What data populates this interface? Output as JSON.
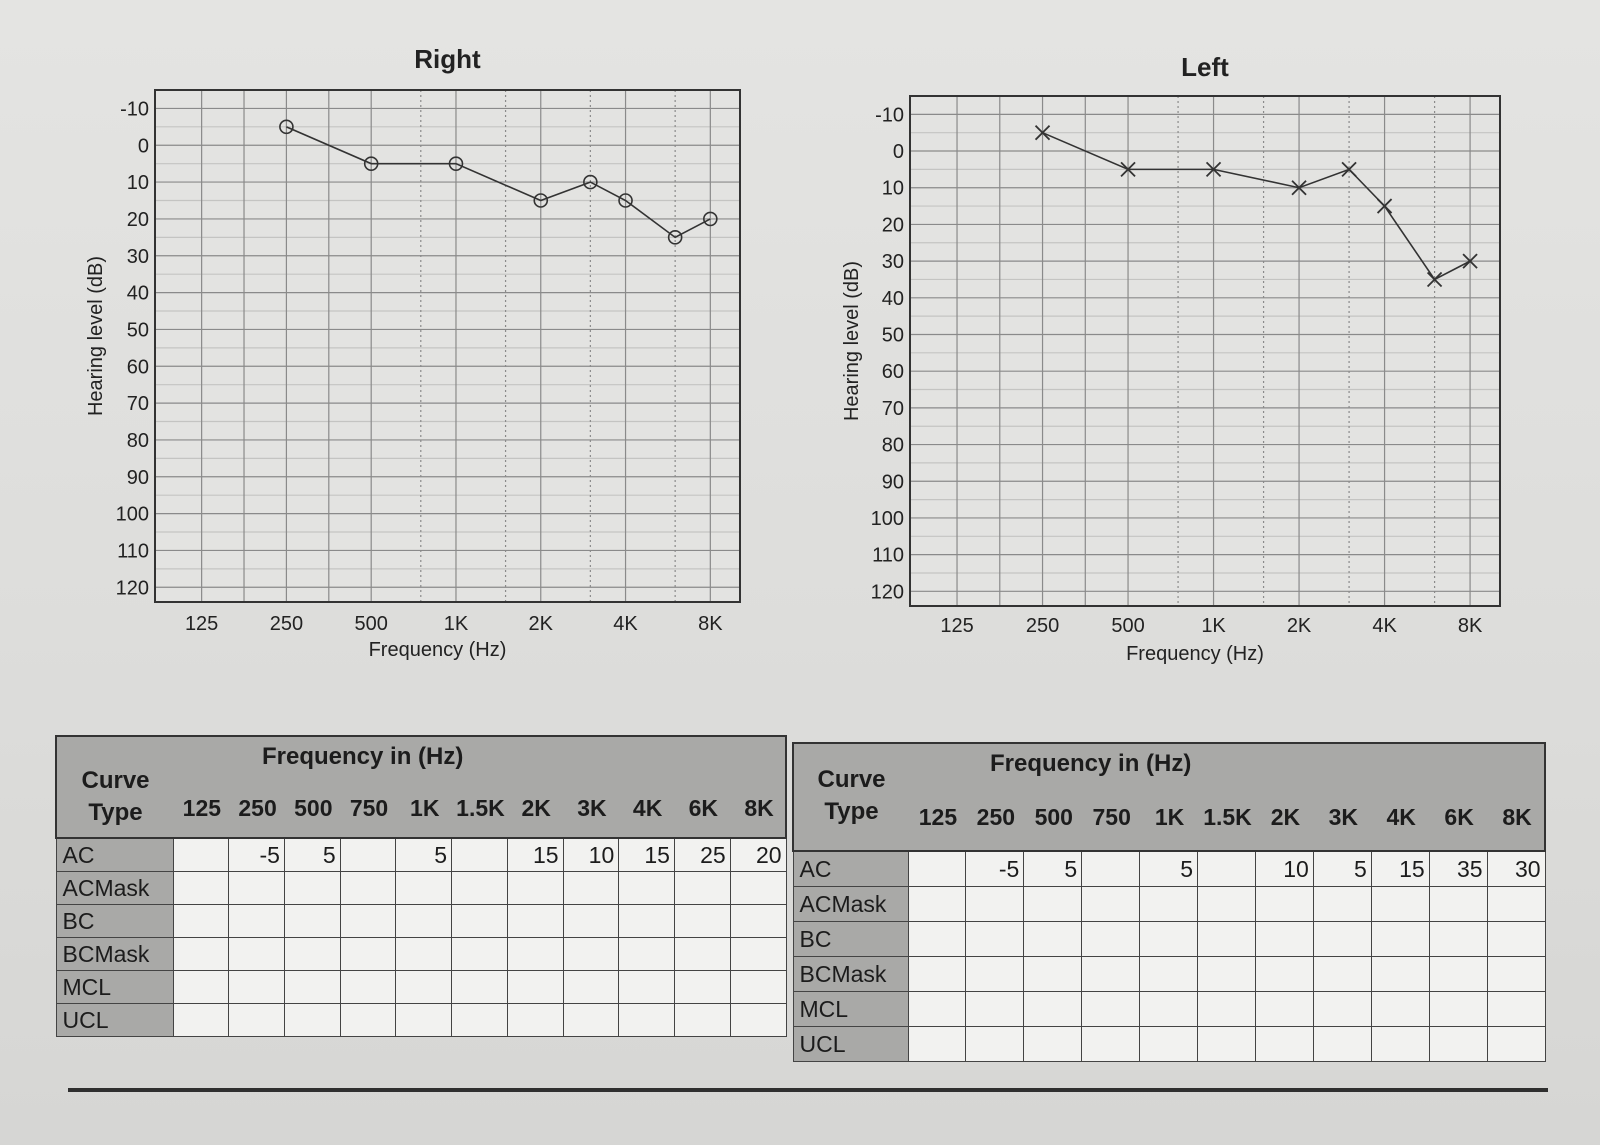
{
  "chart_data": [
    {
      "type": "line",
      "title": "Right",
      "xlabel": "Frequency (Hz)",
      "ylabel": "Hearing level (dB)",
      "x_ticks": [
        "125",
        "250",
        "500",
        "1K",
        "2K",
        "4K",
        "8K"
      ],
      "y_ticks": [
        "-10",
        "0",
        "10",
        "20",
        "30",
        "40",
        "50",
        "60",
        "70",
        "80",
        "90",
        "100",
        "110",
        "120"
      ],
      "ylim": [
        -10,
        120
      ],
      "y_inverted": true,
      "marker": "circle",
      "series": [
        {
          "name": "AC",
          "x": [
            "250",
            "500",
            "1K",
            "2K",
            "3K",
            "4K",
            "6K",
            "8K"
          ],
          "values": [
            -5,
            5,
            5,
            15,
            10,
            15,
            25,
            20
          ]
        }
      ]
    },
    {
      "type": "line",
      "title": "Left",
      "xlabel": "Frequency (Hz)",
      "ylabel": "Hearing level (dB)",
      "x_ticks": [
        "125",
        "250",
        "500",
        "1K",
        "2K",
        "4K",
        "8K"
      ],
      "y_ticks": [
        "-10",
        "0",
        "10",
        "20",
        "30",
        "40",
        "50",
        "60",
        "70",
        "80",
        "90",
        "100",
        "110",
        "120"
      ],
      "ylim": [
        -10,
        120
      ],
      "y_inverted": true,
      "marker": "x",
      "series": [
        {
          "name": "AC",
          "x": [
            "250",
            "500",
            "1K",
            "2K",
            "3K",
            "4K",
            "6K",
            "8K"
          ],
          "values": [
            -5,
            5,
            5,
            10,
            5,
            15,
            35,
            30
          ]
        }
      ]
    }
  ],
  "tables": [
    {
      "title": "Frequency in (Hz)",
      "curve_header_line1": "Curve",
      "curve_header_line2": "Type",
      "freqs": [
        "125",
        "250",
        "500",
        "750",
        "1K",
        "1.5K",
        "2K",
        "3K",
        "4K",
        "6K",
        "8K"
      ],
      "rows": [
        {
          "label": "AC",
          "cells": [
            "",
            "-5",
            "5",
            "",
            "5",
            "",
            "15",
            "10",
            "15",
            "25",
            "20"
          ]
        },
        {
          "label": "ACMask",
          "cells": [
            "",
            "",
            "",
            "",
            "",
            "",
            "",
            "",
            "",
            "",
            ""
          ]
        },
        {
          "label": "BC",
          "cells": [
            "",
            "",
            "",
            "",
            "",
            "",
            "",
            "",
            "",
            "",
            ""
          ]
        },
        {
          "label": "BCMask",
          "cells": [
            "",
            "",
            "",
            "",
            "",
            "",
            "",
            "",
            "",
            "",
            ""
          ]
        },
        {
          "label": "MCL",
          "cells": [
            "",
            "",
            "",
            "",
            "",
            "",
            "",
            "",
            "",
            "",
            ""
          ]
        },
        {
          "label": "UCL",
          "cells": [
            "",
            "",
            "",
            "",
            "",
            "",
            "",
            "",
            "",
            "",
            ""
          ]
        }
      ]
    },
    {
      "title": "Frequency in (Hz)",
      "curve_header_line1": "Curve",
      "curve_header_line2": "Type",
      "freqs": [
        "125",
        "250",
        "500",
        "750",
        "1K",
        "1.5K",
        "2K",
        "3K",
        "4K",
        "6K",
        "8K"
      ],
      "rows": [
        {
          "label": "AC",
          "cells": [
            "",
            "-5",
            "5",
            "",
            "5",
            "",
            "10",
            "5",
            "15",
            "35",
            "30"
          ]
        },
        {
          "label": "ACMask",
          "cells": [
            "",
            "",
            "",
            "",
            "",
            "",
            "",
            "",
            "",
            "",
            ""
          ]
        },
        {
          "label": "BC",
          "cells": [
            "",
            "",
            "",
            "",
            "",
            "",
            "",
            "",
            "",
            "",
            ""
          ]
        },
        {
          "label": "BCMask",
          "cells": [
            "",
            "",
            "",
            "",
            "",
            "",
            "",
            "",
            "",
            "",
            ""
          ]
        },
        {
          "label": "MCL",
          "cells": [
            "",
            "",
            "",
            "",
            "",
            "",
            "",
            "",
            "",
            "",
            ""
          ]
        },
        {
          "label": "UCL",
          "cells": [
            "",
            "",
            "",
            "",
            "",
            "",
            "",
            "",
            "",
            "",
            ""
          ]
        }
      ]
    }
  ]
}
